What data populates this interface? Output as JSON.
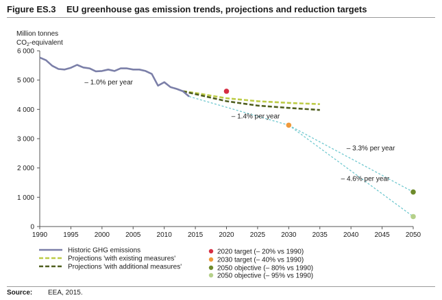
{
  "header": {
    "figure_number": "Figure ES.3",
    "title": "EU greenhouse gas emission trends, projections and reduction targets"
  },
  "source": {
    "label": "Source:",
    "text": "EEA, 2015."
  },
  "colors": {
    "historic": "#7b7fa8",
    "existing": "#bccb45",
    "additional": "#4f5e1e",
    "trajectory": "#6fc8cf",
    "target_2020": "#d62d42",
    "target_2030": "#ef9a3c",
    "objective_80": "#6e8b2b",
    "objective_95": "#b5d08a",
    "axis": "#555555"
  },
  "chart_data": {
    "type": "line",
    "title": "EU greenhouse gas emission trends, projections and reduction targets",
    "ylabel_line1": "Million tonnes",
    "ylabel_line2_pre": "CO",
    "ylabel_line2_sub": "2",
    "ylabel_line2_post": "-equivalent",
    "xlim": [
      1990,
      2050
    ],
    "ylim": [
      0,
      6000
    ],
    "xticks": [
      1990,
      1995,
      2000,
      2005,
      2010,
      2015,
      2020,
      2025,
      2030,
      2035,
      2040,
      2045,
      2050
    ],
    "yticks": [
      {
        "value": 0,
        "label": "0"
      },
      {
        "value": 1000,
        "label": "1 000"
      },
      {
        "value": 2000,
        "label": "2 000"
      },
      {
        "value": 3000,
        "label": "3 000"
      },
      {
        "value": 4000,
        "label": "4 000"
      },
      {
        "value": 5000,
        "label": "5 000"
      },
      {
        "value": 6000,
        "label": "6 000"
      }
    ],
    "series": [
      {
        "name": "Historic GHG emissions",
        "style": "solid",
        "x": [
          1990,
          1991,
          1992,
          1993,
          1994,
          1995,
          1996,
          1997,
          1998,
          1999,
          2000,
          2001,
          2002,
          2003,
          2004,
          2005,
          2006,
          2007,
          2008,
          2009,
          2010,
          2011,
          2012,
          2013,
          2014
        ],
        "y": [
          5770,
          5680,
          5490,
          5380,
          5360,
          5420,
          5520,
          5430,
          5400,
          5300,
          5310,
          5360,
          5310,
          5400,
          5400,
          5360,
          5360,
          5310,
          5210,
          4810,
          4930,
          4760,
          4700,
          4620,
          4440
        ]
      },
      {
        "name": "Projections 'with existing measures'",
        "style": "dashed",
        "x": [
          2013,
          2015,
          2020,
          2025,
          2030,
          2035
        ],
        "y": [
          4620,
          4560,
          4380,
          4280,
          4220,
          4180
        ]
      },
      {
        "name": "Projections 'with additional measures'",
        "style": "dashed",
        "x": [
          2013,
          2015,
          2020,
          2025,
          2030,
          2035
        ],
        "y": [
          4620,
          4520,
          4280,
          4130,
          4050,
          3980
        ]
      }
    ],
    "trajectories": [
      {
        "label": "– 1.4% per year",
        "x": [
          2014,
          2030
        ],
        "y": [
          4440,
          3460
        ]
      },
      {
        "label": "– 3.3% per year",
        "x": [
          2030,
          2050
        ],
        "y": [
          3460,
          1180
        ]
      },
      {
        "label": "– 4.6% per year",
        "x": [
          2030,
          2050
        ],
        "y": [
          3460,
          340
        ]
      }
    ],
    "targets": [
      {
        "name": "2020 target (– 20% vs 1990)",
        "x": 2020,
        "y": 4620,
        "color_key": "target_2020"
      },
      {
        "name": "2030 target (– 40% vs 1990)",
        "x": 2030,
        "y": 3460,
        "color_key": "target_2030"
      },
      {
        "name": "2050 objective (– 80% vs 1990)",
        "x": 2050,
        "y": 1180,
        "color_key": "objective_80"
      },
      {
        "name": "2050 objective (– 95% vs 1990)",
        "x": 2050,
        "y": 340,
        "color_key": "objective_95"
      }
    ],
    "annotations": [
      {
        "text": "– 1.0% per year",
        "x": 1997.2,
        "y": 4850
      },
      {
        "text": "– 1.4% per year",
        "x": 2020.8,
        "y": 3690
      },
      {
        "text": "– 3.3% per year",
        "x": 2039.3,
        "y": 2600
      },
      {
        "text": "– 4.6% per year",
        "x": 2038.4,
        "y": 1560
      }
    ],
    "legend_position": "bottom"
  }
}
